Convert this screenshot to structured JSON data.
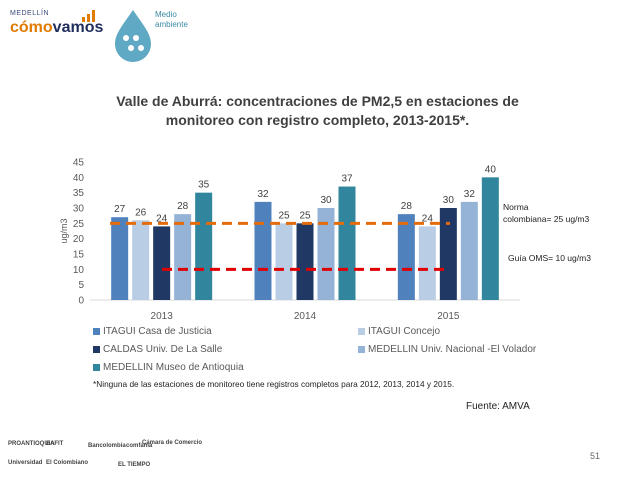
{
  "branding": {
    "city": "MEDELLÍN",
    "name_part1": "cómo",
    "name_part2": "vamos",
    "section": "Medio ambiente",
    "section_line1": "Medio",
    "section_line2": "ambiente"
  },
  "chart_data": {
    "type": "bar",
    "title": "Valle de Aburrá: concentraciones de  PM2,5 en estaciones de monitoreo con registro completo, 2013-2015*.",
    "title_line1": "Valle de Aburrá: concentraciones de  PM2,5 en estaciones de",
    "title_line2": "monitoreo con registro completo, 2013-2015*.",
    "ylabel": "ug/m3",
    "xlabel": "",
    "ylim": [
      0,
      45
    ],
    "yticks": [
      0,
      5,
      10,
      15,
      20,
      25,
      30,
      35,
      40,
      45
    ],
    "categories": [
      "2013",
      "2014",
      "2015"
    ],
    "series": [
      {
        "name": "ITAGUI Casa de Justicia",
        "color": "#4f81bd",
        "values": [
          27,
          32,
          28
        ]
      },
      {
        "name": "ITAGUI Concejo",
        "color": "#b9cde5",
        "values": [
          26,
          25,
          24
        ]
      },
      {
        "name": "CALDAS Univ. De La Salle",
        "color": "#1f3864",
        "values": [
          24,
          25,
          30
        ]
      },
      {
        "name": "MEDELLIN Univ. Nacional -El Volador",
        "color": "#95b3d7",
        "values": [
          28,
          30,
          32
        ]
      },
      {
        "name": "MEDELLIN Museo de Antioquia",
        "color": "#31859c",
        "values": [
          35,
          37,
          40
        ]
      }
    ],
    "reference_lines": [
      {
        "label": "Norma colombiana= 25 ug/m3",
        "label_line1": "Norma",
        "label_line2": "colombiana= 25 ug/m3",
        "value": 25,
        "color": "#e46c0a"
      },
      {
        "label": "Guía OMS= 10 ug/m3",
        "value": 10,
        "color": "#e00000"
      }
    ],
    "grid": false,
    "legend_position": "bottom"
  },
  "footnote": "*Ninguna de las estaciones de monitoreo tiene registros completos para 2012, 2013, 2014 y 2015.",
  "source": "Fuente: AMVA",
  "page_number": "51",
  "sponsors": [
    "PROANTIOQUIA",
    "EAFIT",
    "Bancolombia",
    "comfama",
    "Cámara de Comercio",
    "Universidad",
    "El Colombiano",
    "EL TIEMPO"
  ],
  "colors": {
    "title": "#404040",
    "text": "#595959"
  }
}
